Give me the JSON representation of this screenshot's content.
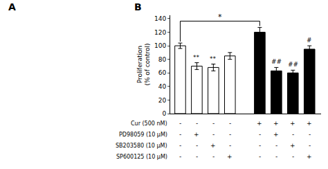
{
  "chart_data": {
    "type": "bar",
    "panel_labels": [
      "A",
      "B"
    ],
    "ylabel": "Proliferation\n(% of control)",
    "categories": [
      null,
      null,
      null,
      null,
      null,
      null,
      null,
      null
    ],
    "values": [
      100,
      70,
      68,
      85,
      120,
      63,
      60,
      95
    ],
    "errors": [
      4,
      5,
      5,
      5,
      7,
      5,
      4,
      5
    ],
    "colors": [
      "white",
      "white",
      "white",
      "white",
      "black",
      "black",
      "black",
      "black"
    ],
    "edgecolor": "black",
    "ylim": [
      0,
      145
    ],
    "yticks": [
      0,
      20,
      40,
      60,
      80,
      100,
      120,
      140
    ],
    "grid": false,
    "tick_labels": "y",
    "significance": [
      {
        "index": 1,
        "text": "**"
      },
      {
        "index": 2,
        "text": "**"
      },
      {
        "index": 5,
        "text": "##"
      },
      {
        "index": 6,
        "text": "##"
      },
      {
        "index": 7,
        "text": "#"
      }
    ],
    "bracket": {
      "from": 0,
      "to": 4,
      "text": "*"
    },
    "row_labels": [
      "Cur (500 nM)",
      "PD98059 (10 μM)",
      "SB203580 (10 μM)",
      "SP600125 (10 μM)"
    ],
    "row_signs": [
      [
        "-",
        "-",
        "-",
        "-",
        "+",
        "+",
        "+",
        "+"
      ],
      [
        "-",
        "+",
        "-",
        "-",
        "-",
        "+",
        "-",
        "-"
      ],
      [
        "-",
        "-",
        "+",
        "-",
        "-",
        "-",
        "+",
        "-"
      ],
      [
        "-",
        "-",
        "-",
        "+",
        "-",
        "-",
        "-",
        "+"
      ]
    ]
  }
}
